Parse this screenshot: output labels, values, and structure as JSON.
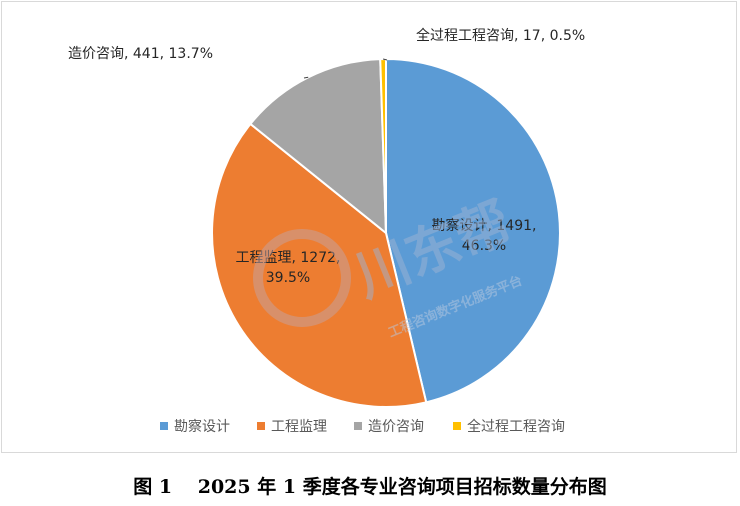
{
  "chart_data": {
    "type": "pie",
    "title": "",
    "categories": [
      "勘察设计",
      "工程监理",
      "造价咨询",
      "全过程工程咨询"
    ],
    "values": [
      1491,
      1272,
      441,
      17
    ],
    "percentages": [
      "46.3%",
      "39.5%",
      "13.7%",
      "0.5%"
    ],
    "colors": [
      "#5b9bd5",
      "#ed7d31",
      "#a5a5a5",
      "#ffc000"
    ],
    "data_labels": [
      {
        "lines": [
          "勘察设计, 1491,",
          "46.3%"
        ],
        "position": "inside"
      },
      {
        "lines": [
          "工程监理, 1272,",
          "39.5%"
        ],
        "position": "inside"
      },
      {
        "lines": [
          "造价咨询, 441, 13.7%"
        ],
        "position": "outside"
      },
      {
        "lines": [
          "全过程工程咨询, 17, 0.5%"
        ],
        "position": "outside"
      }
    ],
    "legend": {
      "position": "bottom",
      "entries": [
        "勘察设计",
        "工程监理",
        "造价咨询",
        "全过程工程咨询"
      ]
    }
  },
  "watermark": {
    "brand": "川东帮",
    "tagline": "工程咨询数字化服务平台"
  },
  "caption": "图 1　 2025 年 1 季度各专业咨询项目招标数量分布图"
}
